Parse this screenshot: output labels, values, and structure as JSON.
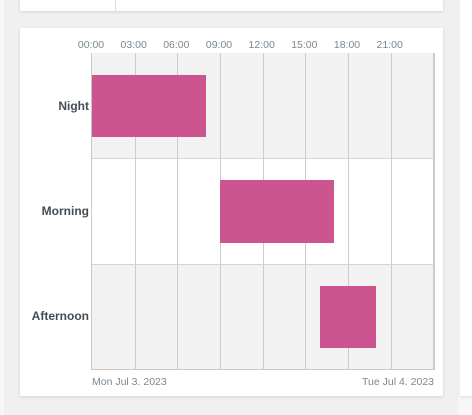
{
  "timeline": {
    "hour_ticks": [
      "00:00",
      "03:00",
      "06:00",
      "09:00",
      "12:00",
      "15:00",
      "18:00",
      "21:00"
    ],
    "start_date_label": "Mon Jul 3. 2023",
    "end_date_label": "Tue Jul 4. 2023",
    "rows": [
      {
        "label": "Night",
        "start_hour": 0,
        "end_hour": 8
      },
      {
        "label": "Morning",
        "start_hour": 9,
        "end_hour": 17
      },
      {
        "label": "Afternoon",
        "start_hour": 16,
        "end_hour": 20
      }
    ],
    "bar_color": "#cc5590"
  }
}
